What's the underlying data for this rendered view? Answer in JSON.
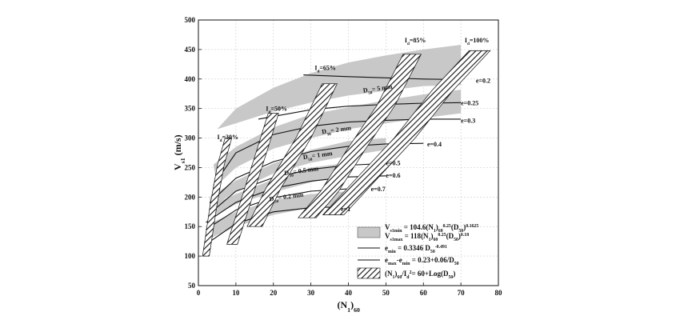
{
  "chart_data": {
    "type": "line",
    "xlabel": "(N1)60",
    "ylabel": "Vs1 (m/s)",
    "xlim": [
      0,
      80
    ],
    "ylim": [
      50,
      500
    ],
    "xticks": [
      0,
      10,
      20,
      30,
      40,
      50,
      60,
      70,
      80
    ],
    "yticks": [
      50,
      100,
      150,
      200,
      250,
      300,
      350,
      400,
      450,
      500
    ],
    "grid": true,
    "colors": {
      "band": "#c8c8c8",
      "line": "#111111",
      "hatch": "#111111"
    },
    "vs1_bands": [
      {
        "D50_mm": 5,
        "label": "D50= 5 mm",
        "label_at": [
          44,
          377
        ],
        "upper": [
          [
            5,
            315
          ],
          [
            10,
            350
          ],
          [
            20,
            385
          ],
          [
            30,
            410
          ],
          [
            40,
            428
          ],
          [
            50,
            440
          ],
          [
            60,
            450
          ],
          [
            70,
            458
          ]
        ],
        "lower": [
          [
            20,
            345
          ],
          [
            30,
            360
          ],
          [
            40,
            372
          ],
          [
            50,
            380
          ],
          [
            60,
            388
          ],
          [
            70,
            390
          ]
        ]
      },
      {
        "D50_mm": 2,
        "label": "D50= 2 mm",
        "label_at": [
          33,
          307
        ],
        "upper": [
          [
            4,
            255
          ],
          [
            10,
            285
          ],
          [
            20,
            318
          ],
          [
            30,
            340
          ],
          [
            40,
            352
          ],
          [
            50,
            364
          ],
          [
            60,
            374
          ],
          [
            70,
            382
          ]
        ],
        "lower": [
          [
            5,
            220
          ],
          [
            10,
            250
          ],
          [
            20,
            282
          ],
          [
            30,
            300
          ],
          [
            40,
            315
          ],
          [
            50,
            325
          ],
          [
            60,
            334
          ],
          [
            70,
            342
          ]
        ]
      },
      {
        "D50_mm": 1,
        "label": "D50= 1 mm",
        "label_at": [
          28,
          264
        ],
        "upper": [
          [
            3,
            200
          ],
          [
            10,
            228
          ],
          [
            20,
            257
          ],
          [
            30,
            280
          ],
          [
            40,
            295
          ],
          [
            50,
            300
          ]
        ],
        "lower": [
          [
            3,
            180
          ],
          [
            10,
            210
          ],
          [
            20,
            240
          ],
          [
            30,
            258
          ],
          [
            40,
            270
          ],
          [
            50,
            280
          ]
        ]
      },
      {
        "D50_mm": 0.5,
        "label": "D50= 0.5 mm",
        "label_at": [
          23,
          237
        ],
        "upper": [
          [
            3,
            185
          ],
          [
            10,
            205
          ],
          [
            20,
            230
          ],
          [
            30,
            250
          ],
          [
            40,
            258
          ]
        ],
        "lower": [
          [
            3,
            165
          ],
          [
            10,
            188
          ],
          [
            20,
            208
          ],
          [
            30,
            225
          ],
          [
            40,
            238
          ]
        ]
      },
      {
        "D50_mm": 0.2,
        "label": "D50= 0.2 mm",
        "label_at": [
          19,
          193
        ],
        "upper": [
          [
            3,
            155
          ],
          [
            10,
            175
          ],
          [
            20,
            195
          ],
          [
            30,
            205
          ],
          [
            40,
            210
          ]
        ],
        "lower": [
          [
            3,
            130
          ],
          [
            10,
            150
          ],
          [
            20,
            170
          ],
          [
            30,
            182
          ],
          [
            40,
            188
          ]
        ]
      }
    ],
    "emin_lines": [
      {
        "label": "e=0.2",
        "label_at": [
          74,
          398
        ],
        "points": [
          [
            28,
            407
          ],
          [
            40,
            404
          ],
          [
            50,
            402
          ],
          [
            60,
            400
          ],
          [
            70,
            399
          ]
        ]
      },
      {
        "label": "e=0.25",
        "label_at": [
          70,
          360
        ],
        "points": [
          [
            16,
            332
          ],
          [
            30,
            348
          ],
          [
            40,
            354
          ],
          [
            50,
            357
          ],
          [
            60,
            359
          ],
          [
            70,
            360
          ]
        ]
      },
      {
        "label": "e=0.3",
        "label_at": [
          70,
          330
        ],
        "points": [
          [
            4,
            220
          ],
          [
            10,
            275
          ],
          [
            20,
            306
          ],
          [
            30,
            320
          ],
          [
            40,
            327
          ],
          [
            50,
            330
          ],
          [
            60,
            332
          ],
          [
            70,
            332
          ]
        ]
      },
      {
        "label": "e=0.4",
        "label_at": [
          61,
          290
        ],
        "points": [
          [
            3,
            190
          ],
          [
            10,
            232
          ],
          [
            20,
            260
          ],
          [
            30,
            277
          ],
          [
            40,
            286
          ],
          [
            50,
            290
          ],
          [
            60,
            291
          ]
        ]
      },
      {
        "label": "e=0.5",
        "label_at": [
          50,
          258
        ],
        "points": [
          [
            3,
            172
          ],
          [
            10,
            210
          ],
          [
            20,
            233
          ],
          [
            30,
            247
          ],
          [
            40,
            254
          ],
          [
            50,
            257
          ]
        ]
      },
      {
        "label": "e=0.6",
        "label_at": [
          50,
          237
        ],
        "points": [
          [
            2,
            157
          ],
          [
            10,
            191
          ],
          [
            20,
            215
          ],
          [
            30,
            227
          ],
          [
            40,
            234
          ],
          [
            50,
            236
          ]
        ]
      },
      {
        "label": "e=0.7",
        "label_at": [
          46,
          214
        ],
        "points": [
          [
            2,
            145
          ],
          [
            10,
            178
          ],
          [
            20,
            199
          ],
          [
            30,
            210
          ],
          [
            40,
            214
          ],
          [
            45,
            215
          ]
        ]
      },
      {
        "label": "e=1",
        "label_at": [
          38,
          180
        ],
        "points": [
          [
            2,
            120
          ],
          [
            10,
            155
          ],
          [
            20,
            175
          ],
          [
            30,
            182
          ],
          [
            35,
            183
          ]
        ]
      }
    ],
    "id_bands": [
      {
        "label": "Id=30%",
        "label_at": [
          5,
          298
        ],
        "width": 0.9,
        "points": [
          [
            2,
            100
          ],
          [
            4,
            185
          ],
          [
            6,
            255
          ],
          [
            8,
            300
          ]
        ]
      },
      {
        "label": "Id=50%",
        "label_at": [
          18,
          346
        ],
        "width": 1.4,
        "points": [
          [
            9,
            120
          ],
          [
            13,
            200
          ],
          [
            17,
            280
          ],
          [
            20,
            342
          ]
        ]
      },
      {
        "label": "Id=65%",
        "label_at": [
          31,
          415
        ],
        "width": 2.0,
        "points": [
          [
            15,
            150
          ],
          [
            20,
            215
          ],
          [
            28,
            300
          ],
          [
            35,
            392
          ]
        ]
      },
      {
        "label": "Id=85%",
        "label_at": [
          55,
          462
        ],
        "width": 2.4,
        "points": [
          [
            29,
            165
          ],
          [
            35,
            210
          ],
          [
            42,
            280
          ],
          [
            50,
            355
          ],
          [
            57,
            442
          ]
        ]
      },
      {
        "label": "Id=100%",
        "label_at": [
          71,
          462
        ],
        "width": 2.8,
        "points": [
          [
            36,
            170
          ],
          [
            45,
            232
          ],
          [
            55,
            300
          ],
          [
            65,
            380
          ],
          [
            75,
            448
          ]
        ]
      }
    ],
    "legend": {
      "position": "bottom-right",
      "items": [
        {
          "type": "band",
          "lines": [
            "Vs1min = 104.6(N1)60^0.25(D50)^0.1625",
            "Vs1max = 118(N1)60^0.25(D50)^0.18"
          ]
        },
        {
          "type": "line",
          "lines": [
            "emin = 0.3346 D50^-0.491"
          ]
        },
        {
          "type": "line",
          "lines": [
            "emax-emin = 0.23+0.06/D50"
          ]
        },
        {
          "type": "hatch",
          "lines": [
            "(N1)60/Id^2= 60+Log(D50)"
          ]
        }
      ]
    }
  }
}
